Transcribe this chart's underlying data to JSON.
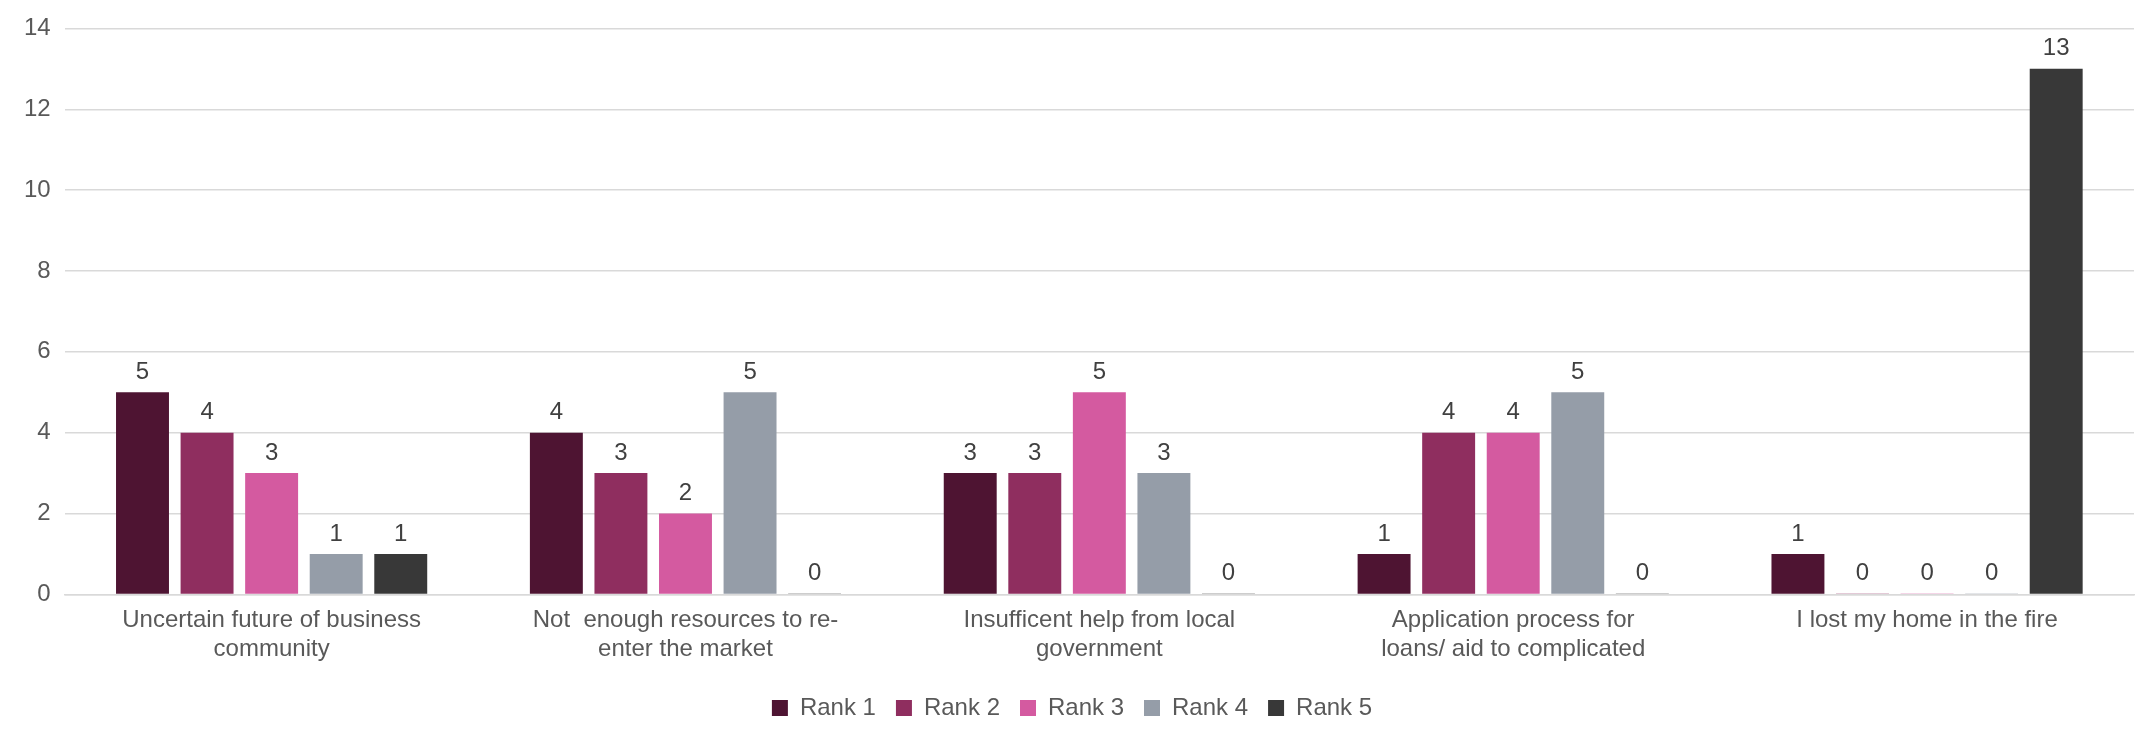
{
  "chart_data": {
    "type": "bar",
    "categories": [
      "Uncertain future of business community",
      "Not  enough resources to re-enter the market",
      "Insufficent help from local government",
      "Application process for loans/ aid to complicated",
      "I lost my home in the fire"
    ],
    "series": [
      {
        "name": "Rank 1",
        "color": "#4e1432",
        "values": [
          5,
          4,
          3,
          1,
          1
        ]
      },
      {
        "name": "Rank 2",
        "color": "#8f2e5f",
        "values": [
          4,
          3,
          3,
          4,
          0
        ]
      },
      {
        "name": "Rank 3",
        "color": "#d45aa0",
        "values": [
          3,
          2,
          5,
          4,
          0
        ]
      },
      {
        "name": "Rank 4",
        "color": "#959da8",
        "values": [
          1,
          5,
          3,
          5,
          0
        ]
      },
      {
        "name": "Rank 5",
        "color": "#383838",
        "values": [
          1,
          0,
          0,
          0,
          13
        ]
      }
    ],
    "ylim": [
      0,
      14
    ],
    "yticks": [
      0,
      2,
      4,
      6,
      8,
      10,
      12,
      14
    ],
    "grid": "y",
    "legend": "bottom",
    "data_labels": true
  }
}
